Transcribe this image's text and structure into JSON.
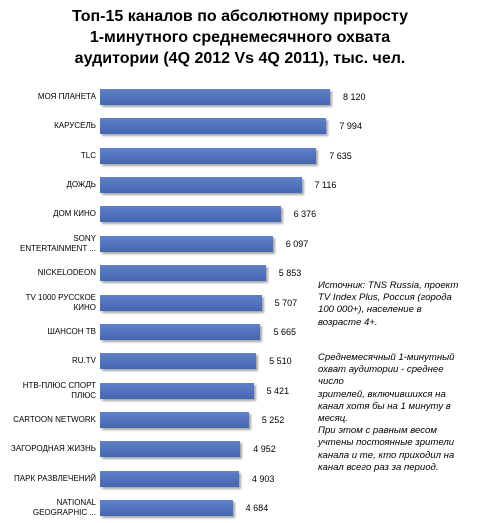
{
  "chart_data": {
    "type": "bar",
    "orientation": "horizontal",
    "title": "Топ-15 каналов по абсолютному приросту\n1-минутного среднемесячного охвата\nаудитории (4Q 2012 Vs 4Q 2011), тыс. чел.",
    "categories": [
      "МОЯ ПЛАНЕТА",
      "КАРУСЕЛЬ",
      "TLC",
      "ДОЖДЬ",
      "ДОМ КИНО",
      "SONY ENTERTAINMENT ...",
      "NICKELODEON",
      "TV 1000 РУССКОЕ КИНО",
      "ШАНСОН ТВ",
      "RU.TV",
      "НТВ-ПЛЮС СПОРТ ПЛЮС",
      "CARTOON NETWORK",
      "ЗАГОРОДНАЯ ЖИЗНЬ",
      "ПАРК РАЗВЛЕЧЕНИЙ",
      "NATIONAL GEOGRAPHIC ..."
    ],
    "values": [
      8120,
      7994,
      7635,
      7116,
      6376,
      6097,
      5853,
      5707,
      5665,
      5510,
      5421,
      5252,
      4952,
      4903,
      4684
    ],
    "value_labels": [
      "8 120",
      "7 994",
      "7 635",
      "7 116",
      "6 376",
      "6 097",
      "5 853",
      "5 707",
      "5 665",
      "5 510",
      "5 421",
      "5 252",
      "4 952",
      "4 903",
      "4 684"
    ],
    "color": "#4a6fbf",
    "annotations": [
      "Источник: TNS Russia, проект\nTV Index Plus, Россия (города\n100 000+), население в\nвозрасте 4+.",
      "Среднемесячный 1-минутный\nохват аудитории - среднее\nчисло\nзрителей, включившихся на\nканал хотя бы на 1 минуту в\nмесяц.\nПри этом с равным весом\nучтены постоянные зрители\nканала и те, кто приходил на\nканал всего раз за период."
    ]
  }
}
